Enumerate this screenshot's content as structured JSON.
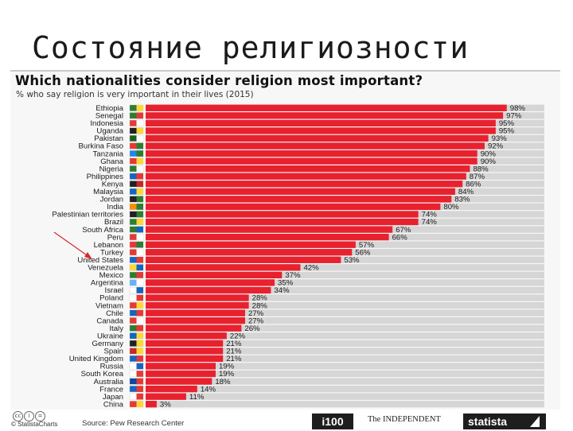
{
  "slide_title": "Состояние религиозности",
  "chart_data": {
    "type": "bar",
    "orientation": "horizontal",
    "title": "Which nationalities consider religion most important?",
    "subtitle": "% who say religion is very important in their lives (2015)",
    "value_suffix": "%",
    "bar_color": "#e8212e",
    "categories": [
      "Ethiopia",
      "Senegal",
      "Indonesia",
      "Uganda",
      "Pakistan",
      "Burkina Faso",
      "Tanzania",
      "Ghana",
      "Nigeria",
      "Philippines",
      "Kenya",
      "Malaysia",
      "Jordan",
      "India",
      "Palestinian territories",
      "Brazil",
      "South Africa",
      "Peru",
      "Lebanon",
      "Turkey",
      "United States",
      "Venezuela",
      "Mexico",
      "Argentina",
      "Israel",
      "Poland",
      "Vietnam",
      "Chile",
      "Canada",
      "Italy",
      "Ukraine",
      "Germany",
      "Spain",
      "United Kingdom",
      "Russia",
      "South Korea",
      "Australia",
      "France",
      "Japan",
      "China"
    ],
    "values": [
      98,
      97,
      95,
      95,
      93,
      92,
      90,
      90,
      88,
      87,
      86,
      84,
      83,
      80,
      74,
      74,
      67,
      66,
      57,
      56,
      53,
      42,
      37,
      35,
      34,
      28,
      28,
      27,
      27,
      26,
      22,
      21,
      21,
      21,
      19,
      19,
      18,
      14,
      11,
      3
    ],
    "xlim": [
      0,
      100
    ]
  },
  "annotation": {
    "type": "arrow",
    "target": "United States"
  },
  "footer": {
    "copyright": "© StatistaCharts",
    "source": "Source: Pew Research Center",
    "logo_i100": "i100",
    "logo_independent": "The INDEPENDENT",
    "logo_statista": "statista"
  },
  "icons": [
    "creative-commons-icon",
    "attribution-icon",
    "no-derivatives-icon"
  ]
}
